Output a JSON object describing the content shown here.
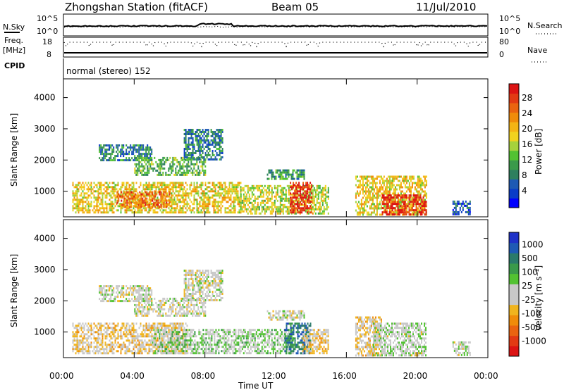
{
  "header": {
    "station": "Zhongshan Station (fitACF)",
    "beam": "Beam 05",
    "date": "11/Jul/2010"
  },
  "top_panels": {
    "nsky_label": "N.Sky",
    "nsky_ticks": [
      "10^5",
      "10^0"
    ],
    "nsearch_label": "N.Search",
    "nsearch_ticks": [
      "10^5",
      "10^0"
    ],
    "freq_label": "Freq.",
    "freq_unit": "[MHz]",
    "freq_ticks": [
      "18",
      "8"
    ],
    "nave_label": "Nave",
    "nave_ticks": [
      "80",
      "0"
    ],
    "cpid_label": "CPID",
    "cpid_text": "normal (stereo) 152"
  },
  "power_panel": {
    "ylabel": "Slant Range [km]",
    "yticks": [
      "4000",
      "3000",
      "2000",
      "1000"
    ],
    "colorbar_label": "Power [dB]",
    "colorbar_ticks": [
      "28",
      "24",
      "20",
      "16",
      "12",
      "8",
      "4"
    ],
    "colorbar_colors": [
      "#0000ff",
      "#0a3cc8",
      "#1e5ab4",
      "#2e7f5e",
      "#3a9a4a",
      "#52c232",
      "#a6d23c",
      "#f0d21e",
      "#f4b414",
      "#f08c0a",
      "#ea6410",
      "#e23a14",
      "#dc1414"
    ]
  },
  "velocity_panel": {
    "ylabel": "Slant Range [km]",
    "yticks": [
      "4000",
      "3000",
      "2000",
      "1000"
    ],
    "colorbar_label": "Velocity [m s⁻¹]",
    "colorbar_ticks": [
      "1000",
      "500",
      "100",
      "25",
      "-25",
      "-100",
      "-500",
      "-1000"
    ],
    "colorbar_colors": [
      "#1e32c8",
      "#1e5ab4",
      "#2a7a6a",
      "#3a9a4a",
      "#52c232",
      "#c8c8c8",
      "#c8c8c8",
      "#f0b41e",
      "#f08c0a",
      "#ea6410",
      "#e23a14",
      "#dc1414"
    ]
  },
  "x_axis": {
    "label": "Time UT",
    "ticks": [
      "00:00",
      "04:00",
      "08:00",
      "12:00",
      "16:00",
      "20:00",
      "00:00"
    ]
  },
  "chart_data": [
    {
      "type": "heatmap",
      "name": "Power",
      "title": "Zhongshan Station (fitACF)  Beam 05  11/Jul/2010",
      "xlabel": "Time UT",
      "ylabel": "Slant Range [km]",
      "xlim_hours": [
        0,
        24
      ],
      "ylim_km": [
        180,
        4600
      ],
      "colorbar": {
        "label": "Power [dB]",
        "range": [
          0,
          30
        ]
      },
      "regions": [
        {
          "t_start": 2.0,
          "t_end": 5.0,
          "r_min": 2000,
          "r_max": 2500,
          "value": 8
        },
        {
          "t_start": 4.0,
          "t_end": 8.0,
          "r_min": 1500,
          "r_max": 2100,
          "value": 12
        },
        {
          "t_start": 6.8,
          "t_end": 9.0,
          "r_min": 2000,
          "r_max": 3000,
          "value": 8
        },
        {
          "t_start": 0.5,
          "t_end": 10.0,
          "r_min": 300,
          "r_max": 1300,
          "value": 18
        },
        {
          "t_start": 3.0,
          "t_end": 6.0,
          "r_min": 500,
          "r_max": 1000,
          "value": 24
        },
        {
          "t_start": 10.0,
          "t_end": 15.0,
          "r_min": 300,
          "r_max": 1200,
          "value": 16
        },
        {
          "t_start": 12.8,
          "t_end": 14.0,
          "r_min": 300,
          "r_max": 1300,
          "value": 28
        },
        {
          "t_start": 11.5,
          "t_end": 13.6,
          "r_min": 1400,
          "r_max": 1700,
          "value": 10
        },
        {
          "t_start": 16.5,
          "t_end": 20.5,
          "r_min": 250,
          "r_max": 1500,
          "value": 18
        },
        {
          "t_start": 18.0,
          "t_end": 20.5,
          "r_min": 250,
          "r_max": 900,
          "value": 28
        },
        {
          "t_start": 22.0,
          "t_end": 23.0,
          "r_min": 250,
          "r_max": 700,
          "value": 6
        }
      ]
    },
    {
      "type": "heatmap",
      "name": "Velocity",
      "xlabel": "Time UT",
      "ylabel": "Slant Range [km]",
      "xlim_hours": [
        0,
        24
      ],
      "ylim_km": [
        180,
        4600
      ],
      "colorbar": {
        "label": "Velocity [m s⁻¹]",
        "range": [
          -1000,
          1000
        ]
      },
      "regions": [
        {
          "t_start": 2.0,
          "t_end": 5.0,
          "r_min": 2000,
          "r_max": 2500,
          "value": 0
        },
        {
          "t_start": 4.0,
          "t_end": 8.0,
          "r_min": 1500,
          "r_max": 2100,
          "value": 0
        },
        {
          "t_start": 6.8,
          "t_end": 9.0,
          "r_min": 2000,
          "r_max": 3000,
          "value": 0
        },
        {
          "t_start": 0.5,
          "t_end": 7.0,
          "r_min": 300,
          "r_max": 1300,
          "value": -150
        },
        {
          "t_start": 5.0,
          "t_end": 10.0,
          "r_min": 300,
          "r_max": 1100,
          "value": 150
        },
        {
          "t_start": 10.0,
          "t_end": 13.0,
          "r_min": 300,
          "r_max": 1100,
          "value": 150
        },
        {
          "t_start": 12.5,
          "t_end": 14.0,
          "r_min": 300,
          "r_max": 1300,
          "value": 600
        },
        {
          "t_start": 13.5,
          "t_end": 15.0,
          "r_min": 300,
          "r_max": 1100,
          "value": -150
        },
        {
          "t_start": 11.5,
          "t_end": 13.6,
          "r_min": 1400,
          "r_max": 1700,
          "value": 0
        },
        {
          "t_start": 16.5,
          "t_end": 18.0,
          "r_min": 250,
          "r_max": 1500,
          "value": -150
        },
        {
          "t_start": 17.5,
          "t_end": 20.5,
          "r_min": 250,
          "r_max": 1300,
          "value": 60
        },
        {
          "t_start": 22.0,
          "t_end": 23.0,
          "r_min": 250,
          "r_max": 700,
          "value": 60
        }
      ]
    }
  ]
}
